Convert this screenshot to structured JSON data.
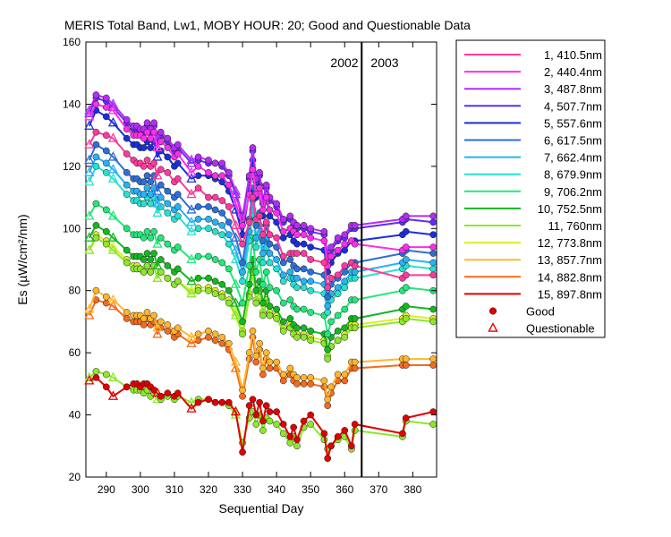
{
  "chart_data": {
    "type": "line",
    "title": "MERIS Total Band,  Lw1, MOBY HOUR: 20;  Good and Questionable Data",
    "xlabel": "Sequential Day",
    "ylabel": "Es (µW/cm²/nm)",
    "xlim": [
      284,
      387
    ],
    "ylim": [
      20,
      160
    ],
    "xticks": [
      290,
      300,
      310,
      320,
      330,
      340,
      350,
      360,
      370,
      380
    ],
    "yticks": [
      20,
      40,
      60,
      80,
      100,
      120,
      140,
      160
    ],
    "grid": false,
    "legend_position": "outside-right-top",
    "year_divider": {
      "x": 365,
      "left_label": "2002",
      "right_label": "2003"
    },
    "marker_legend": [
      {
        "name": "Good",
        "marker": "filled-circle",
        "color": "#e00000"
      },
      {
        "name": "Questionable",
        "marker": "open-triangle",
        "color": "#e00000"
      }
    ],
    "x": [
      285,
      287,
      290,
      292,
      296,
      298,
      299,
      300,
      301,
      302,
      303,
      304,
      305,
      306,
      308,
      310,
      311,
      315,
      317,
      320,
      322,
      324,
      326,
      328,
      330,
      332,
      333,
      334,
      335,
      336,
      337,
      338,
      340,
      342,
      344,
      345,
      346,
      348,
      350,
      354,
      355,
      356,
      358,
      360,
      362,
      363,
      377,
      378,
      386
    ],
    "series": [
      {
        "name": "1, 410.5nm",
        "color": "#ff3a9e",
        "values": [
          127,
          131,
          130,
          129,
          124,
          122,
          121,
          121,
          120,
          122,
          120,
          121,
          117,
          119,
          118,
          115,
          116,
          111,
          113,
          110,
          110,
          109,
          107,
          101,
          95,
          102,
          110,
          103,
          104,
          98,
          102,
          98,
          97,
          91,
          92,
          92,
          92,
          92,
          90,
          89,
          81,
          84,
          85,
          88,
          89,
          88,
          84,
          85,
          85
        ]
      },
      {
        "name": "2, 440.4nm",
        "color": "#ff2ee8",
        "values": [
          136,
          140,
          139,
          138,
          132,
          130,
          130,
          130,
          129,
          131,
          129,
          131,
          126,
          128,
          126,
          123,
          124,
          118,
          120,
          118,
          117,
          117,
          114,
          108,
          101,
          111,
          119,
          111,
          113,
          106,
          110,
          106,
          105,
          99,
          100,
          99,
          98,
          98,
          97,
          96,
          88,
          91,
          93,
          95,
          96,
          95,
          93,
          94,
          94
        ]
      },
      {
        "name": "3, 487.8nm",
        "color": "#b42cf5",
        "values": [
          138,
          143,
          142,
          140,
          135,
          133,
          133,
          132,
          132,
          134,
          132,
          134,
          129,
          131,
          129,
          126,
          127,
          122,
          123,
          122,
          121,
          121,
          118,
          112,
          104,
          117,
          126,
          116,
          118,
          109,
          114,
          110,
          108,
          103,
          104,
          102,
          101,
          101,
          100,
          99,
          91,
          94,
          97,
          98,
          101,
          101,
          103,
          104,
          104
        ]
      },
      {
        "name": "4, 507.7nm",
        "color": "#5f2ef5",
        "values": [
          137,
          142,
          141,
          139,
          134,
          132,
          132,
          131,
          131,
          133,
          131,
          133,
          128,
          130,
          128,
          125,
          126,
          121,
          122,
          121,
          121,
          120,
          117,
          111,
          103,
          116,
          125,
          115,
          117,
          108,
          113,
          109,
          107,
          102,
          103,
          101,
          100,
          100,
          99,
          98,
          90,
          93,
          96,
          97,
          100,
          100,
          102,
          103,
          102
        ]
      },
      {
        "name": "5, 557.6nm",
        "color": "#1a2fd8",
        "values": [
          133,
          138,
          136,
          134,
          129,
          127,
          127,
          126,
          126,
          128,
          126,
          128,
          123,
          125,
          123,
          120,
          121,
          116,
          117,
          117,
          116,
          115,
          112,
          106,
          98,
          112,
          122,
          110,
          114,
          104,
          110,
          104,
          102,
          97,
          98,
          96,
          95,
          95,
          94,
          93,
          86,
          89,
          92,
          93,
          96,
          96,
          98,
          99,
          98
        ]
      },
      {
        "name": "6, 617.5nm",
        "color": "#2d6fd8",
        "values": [
          122,
          127,
          125,
          123,
          118,
          116,
          116,
          115,
          115,
          117,
          115,
          117,
          112,
          114,
          112,
          110,
          111,
          106,
          107,
          107,
          106,
          105,
          102,
          97,
          89,
          103,
          113,
          101,
          105,
          96,
          101,
          95,
          94,
          89,
          90,
          88,
          87,
          87,
          86,
          85,
          78,
          82,
          84,
          86,
          89,
          89,
          92,
          93,
          92
        ]
      },
      {
        "name": "7, 662.4nm",
        "color": "#27b2f5",
        "values": [
          118,
          123,
          121,
          119,
          114,
          112,
          112,
          111,
          111,
          113,
          111,
          113,
          108,
          110,
          108,
          106,
          107,
          102,
          103,
          103,
          102,
          101,
          98,
          93,
          86,
          99,
          109,
          97,
          101,
          92,
          97,
          92,
          90,
          85,
          86,
          84,
          84,
          83,
          83,
          82,
          75,
          79,
          81,
          83,
          86,
          86,
          89,
          90,
          89
        ]
      },
      {
        "name": "8, 679.9nm",
        "color": "#27e0d0",
        "values": [
          115,
          120,
          118,
          116,
          111,
          109,
          109,
          108,
          108,
          110,
          108,
          110,
          105,
          107,
          105,
          103,
          104,
          99,
          100,
          100,
          99,
          98,
          95,
          90,
          83,
          96,
          106,
          94,
          98,
          89,
          94,
          89,
          87,
          83,
          84,
          82,
          81,
          81,
          80,
          79,
          73,
          77,
          79,
          81,
          84,
          84,
          87,
          88,
          87
        ]
      },
      {
        "name": "9, 706.2nm",
        "color": "#22e87a",
        "values": [
          104,
          108,
          106,
          104,
          100,
          98,
          98,
          98,
          97,
          99,
          97,
          99,
          95,
          97,
          95,
          93,
          94,
          90,
          91,
          91,
          90,
          89,
          87,
          82,
          76,
          88,
          97,
          86,
          90,
          82,
          86,
          81,
          80,
          76,
          77,
          75,
          74,
          74,
          73,
          72,
          66,
          70,
          72,
          74,
          77,
          77,
          80,
          81,
          80
        ]
      },
      {
        "name": "10, 752.5nm",
        "color": "#13b822",
        "values": [
          97,
          101,
          99,
          97,
          93,
          91,
          91,
          91,
          90,
          92,
          90,
          92,
          88,
          90,
          88,
          86,
          87,
          83,
          84,
          84,
          83,
          82,
          80,
          76,
          70,
          82,
          90,
          80,
          83,
          76,
          80,
          75,
          74,
          70,
          71,
          69,
          68,
          68,
          67,
          66,
          61,
          65,
          67,
          68,
          71,
          71,
          74,
          75,
          74
        ]
      },
      {
        "name": "11,   760nm",
        "color": "#8ce82a",
        "values": [
          93,
          97,
          95,
          93,
          89,
          87,
          87,
          87,
          86,
          88,
          86,
          88,
          84,
          86,
          84,
          82,
          83,
          79,
          80,
          80,
          79,
          78,
          76,
          72,
          66,
          78,
          86,
          76,
          80,
          72,
          76,
          72,
          71,
          67,
          68,
          66,
          65,
          65,
          64,
          63,
          58,
          62,
          64,
          65,
          68,
          68,
          70,
          71,
          70
        ]
      },
      {
        "name": "12, 773.8nm",
        "color": "#dcee2a",
        "values": [
          93,
          98,
          96,
          94,
          90,
          88,
          88,
          87,
          86,
          88,
          86,
          88,
          84,
          86,
          84,
          82,
          83,
          80,
          81,
          81,
          80,
          79,
          77,
          73,
          67,
          79,
          87,
          77,
          80,
          73,
          77,
          73,
          72,
          68,
          69,
          67,
          66,
          66,
          65,
          64,
          59,
          62,
          64,
          66,
          69,
          69,
          71,
          72,
          71
        ]
      },
      {
        "name": "13, 857.7nm",
        "color": "#ffb62e",
        "values": [
          74,
          80,
          78,
          77,
          73,
          72,
          72,
          72,
          71,
          73,
          71,
          72,
          68,
          70,
          69,
          67,
          68,
          65,
          66,
          67,
          66,
          65,
          63,
          57,
          48,
          60,
          67,
          59,
          63,
          55,
          60,
          57,
          57,
          53,
          55,
          53,
          52,
          52,
          52,
          51,
          45,
          49,
          53,
          53,
          57,
          57,
          58,
          58,
          58
        ]
      },
      {
        "name": "14, 882.8nm",
        "color": "#f56a1e",
        "values": [
          72,
          77,
          76,
          75,
          71,
          70,
          70,
          70,
          69,
          71,
          69,
          70,
          66,
          68,
          67,
          65,
          66,
          63,
          64,
          65,
          64,
          63,
          61,
          55,
          46,
          58,
          65,
          57,
          61,
          53,
          58,
          55,
          55,
          51,
          53,
          51,
          50,
          50,
          50,
          49,
          43,
          47,
          51,
          51,
          55,
          55,
          56,
          56,
          56
        ]
      },
      {
        "name": "15, 897.8nm",
        "color": "#e00000",
        "values": [
          51,
          52,
          49,
          46,
          49,
          50,
          50,
          49,
          50,
          50,
          49,
          48,
          47,
          46,
          47,
          46,
          47,
          42,
          44,
          45,
          44,
          44,
          44,
          41,
          28,
          43,
          45,
          40,
          44,
          38,
          43,
          41,
          41,
          37,
          33,
          36,
          32,
          38,
          40,
          34,
          26,
          30,
          33,
          35,
          30,
          37,
          34,
          39,
          41
        ]
      },
      {
        "name": "",
        "color": "#8ce82a",
        "values": [
          52,
          54,
          53,
          52,
          49,
          48,
          48,
          48,
          47,
          48,
          46,
          47,
          45,
          45,
          46,
          45,
          46,
          44,
          45,
          45,
          44,
          44,
          43,
          40,
          31,
          39,
          41,
          37,
          40,
          35,
          39,
          38,
          37,
          34,
          31,
          33,
          30,
          36,
          37,
          32,
          29,
          30,
          32,
          33,
          29,
          35,
          33,
          38,
          37
        ]
      }
    ],
    "questionable_x": [
      285,
      292,
      305,
      315,
      328
    ]
  }
}
